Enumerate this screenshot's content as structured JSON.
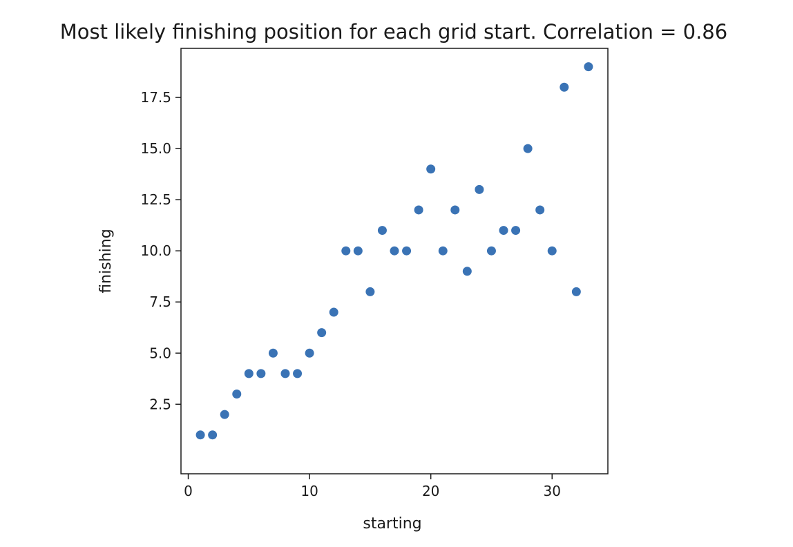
{
  "chart_data": {
    "type": "scatter",
    "title": "Most likely finishing position for each grid start. Correlation = 0.86",
    "xlabel": "starting",
    "ylabel": "finishing",
    "xlim": [
      -0.6,
      34.6
    ],
    "ylim": [
      -0.9,
      19.9
    ],
    "xticks": [
      0,
      10,
      20,
      30
    ],
    "xtick_labels": [
      "0",
      "10",
      "20",
      "30"
    ],
    "yticks": [
      2.5,
      5.0,
      7.5,
      10.0,
      12.5,
      15.0,
      17.5
    ],
    "ytick_labels": [
      "2.5",
      "5.0",
      "7.5",
      "10.0",
      "12.5",
      "15.0",
      "17.5"
    ],
    "grid": false,
    "legend": false,
    "marker_color": "#3a73b5",
    "series": [
      {
        "x": [
          1,
          2,
          3,
          4,
          5,
          6,
          7,
          8,
          9,
          10,
          11,
          12,
          13,
          14,
          15,
          16,
          17,
          18,
          19,
          20,
          21,
          22,
          23,
          24,
          25,
          26,
          27,
          28,
          29,
          30,
          31,
          32,
          33
        ],
        "y": [
          1,
          1,
          2,
          3,
          4,
          4,
          5,
          4,
          4,
          5,
          6,
          7,
          10,
          10,
          8,
          11,
          10,
          10,
          12,
          14,
          10,
          12,
          9,
          13,
          10,
          11,
          11,
          15,
          12,
          10,
          18,
          8,
          19
        ]
      }
    ]
  }
}
